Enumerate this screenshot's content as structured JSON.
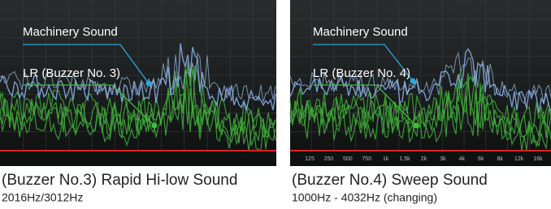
{
  "panels": [
    {
      "labels": {
        "machinery": "Machinery Sound",
        "lr": "LR (Buzzer No. 3)"
      },
      "caption": "(Buzzer No.3) Rapid Hi-low Sound",
      "subcaption": "2016Hz/3012Hz"
    },
    {
      "labels": {
        "machinery": "Machinery Sound",
        "lr": "LR (Buzzer No. 4)"
      },
      "caption": "(Buzzer No.4) Sweep Sound",
      "subcaption": "1000Hz - 4032Hz (changing)",
      "axis_labels": [
        "125",
        "250",
        "500",
        "750",
        "1k",
        "1.5k",
        "2k",
        "3k",
        "4k",
        "6k",
        "8k",
        "12k",
        "16k"
      ]
    }
  ]
}
